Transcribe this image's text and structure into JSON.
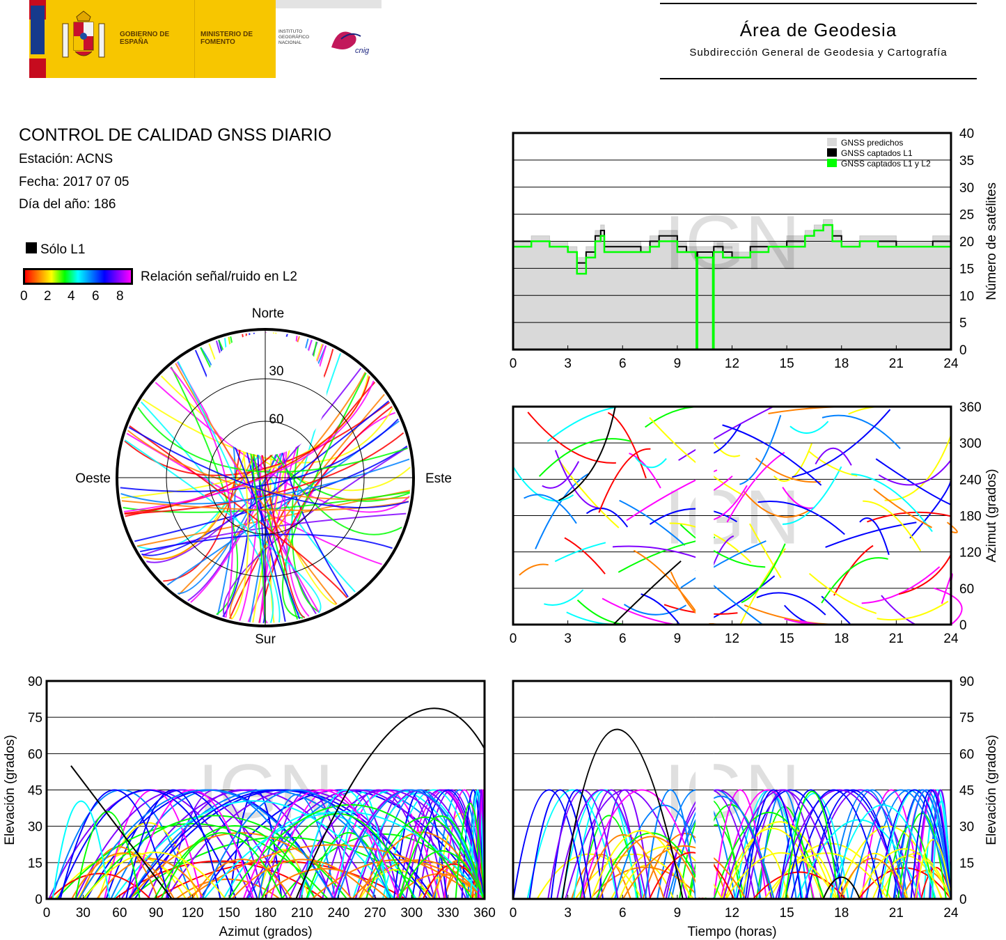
{
  "header": {
    "logos": {
      "gobierno": "GOBIERNO DE ESPAÑA",
      "ministerio": "MINISTERIO DE FOMENTO",
      "instituto": "INSTITUTO GEOGRÁFICO NACIONAL",
      "cnig": "cnig"
    },
    "title": "Área de Geodesia",
    "subtitle": "Subdirección General de Geodesia y Cartografía"
  },
  "report": {
    "title": "CONTROL DE CALIDAD GNSS DIARIO",
    "station": "Estación: ACNS",
    "date": "Fecha: 2017 07 05",
    "doy": "Día del año: 186"
  },
  "legend": {
    "l1_only": "Sólo L1",
    "snr_label": "Relación señal/ruido en L2",
    "snr_ticks": [
      "0",
      "2",
      "4",
      "6",
      "8"
    ]
  },
  "colors": {
    "predicted": "#d9d9d9",
    "l1": "#000000",
    "l1l2": "#00ff00",
    "snr_scale": [
      "#ff0000",
      "#ff8000",
      "#ffff00",
      "#00ff00",
      "#00ffff",
      "#0080ff",
      "#0000ff",
      "#8000ff",
      "#ff00ff"
    ]
  },
  "watermark": "IGN",
  "chart_data": [
    {
      "id": "satellite_count",
      "type": "area",
      "ylabel": "Número de satélites",
      "x_ticks": [
        "0",
        "3",
        "6",
        "9",
        "12",
        "15",
        "18",
        "21",
        "24"
      ],
      "y_ticks": [
        "0",
        "5",
        "10",
        "15",
        "20",
        "25",
        "30",
        "35",
        "40"
      ],
      "xlim": [
        0,
        24
      ],
      "ylim": [
        0,
        40
      ],
      "grid": true,
      "legend_position": "top-right",
      "series": [
        {
          "name": "GNSS predichos",
          "x": [
            0,
            1,
            2,
            3,
            3.5,
            4,
            4.5,
            4.8,
            5,
            6,
            7,
            7.5,
            8,
            9,
            9.5,
            10,
            10.8,
            11,
            11.5,
            12,
            13,
            14,
            15,
            16,
            16.5,
            17,
            17.5,
            18,
            19,
            20,
            21,
            22,
            23,
            24
          ],
          "values": [
            20,
            21,
            20,
            19,
            17,
            19,
            22,
            23,
            20,
            20,
            19,
            21,
            22,
            20,
            19,
            19,
            19,
            20,
            19,
            18,
            20,
            20,
            21,
            22,
            23,
            24,
            22,
            20,
            21,
            21,
            20,
            20,
            21,
            20
          ]
        },
        {
          "name": "GNSS captados L1",
          "x": [
            0,
            1,
            2,
            3,
            3.5,
            4,
            4.5,
            4.8,
            5,
            6,
            7,
            7.5,
            8,
            9,
            9.5,
            10,
            10.05,
            10.1,
            10.8,
            10.95,
            11,
            11.5,
            12,
            13,
            14,
            15,
            16,
            16.5,
            17,
            17.5,
            18,
            19,
            20,
            21,
            22,
            23,
            24
          ],
          "values": [
            20,
            20,
            19,
            18,
            16,
            18,
            21,
            22,
            19,
            19,
            18,
            20,
            21,
            19,
            18,
            18,
            0,
            18,
            18,
            0,
            19,
            18,
            17,
            19,
            19,
            20,
            21,
            22,
            23,
            21,
            19,
            20,
            20,
            19,
            19,
            20,
            19
          ]
        },
        {
          "name": "GNSS captados L1 y L2",
          "x": [
            0,
            1,
            2,
            3,
            3.5,
            4,
            4.5,
            4.8,
            5,
            6,
            7,
            7.5,
            8,
            9,
            9.5,
            10,
            10.05,
            10.1,
            10.8,
            10.95,
            11,
            11.5,
            12,
            13,
            14,
            15,
            16,
            16.5,
            17,
            17.5,
            18,
            19,
            20,
            21,
            22,
            23,
            24
          ],
          "values": [
            19,
            20,
            19,
            18,
            14,
            17,
            20,
            21,
            18,
            18,
            18,
            19,
            20,
            18,
            18,
            17,
            0,
            17,
            17,
            0,
            18,
            17,
            17,
            18,
            19,
            19,
            21,
            22,
            23,
            20,
            19,
            20,
            19,
            19,
            19,
            19,
            19
          ]
        }
      ]
    },
    {
      "id": "skyplot",
      "type": "scatter",
      "direction_labels": {
        "north": "Norte",
        "south": "Sur",
        "east": "Este",
        "west": "Oeste"
      },
      "elevation_ticks": [
        "30",
        "60"
      ]
    },
    {
      "id": "azimuth_vs_time",
      "type": "scatter",
      "ylabel": "Azimut (grados)",
      "x_ticks": [
        "0",
        "3",
        "6",
        "9",
        "12",
        "15",
        "18",
        "21",
        "24"
      ],
      "y_ticks": [
        "0",
        "60",
        "120",
        "180",
        "240",
        "300",
        "360"
      ],
      "xlim": [
        0,
        24
      ],
      "ylim": [
        0,
        360
      ],
      "grid": true,
      "gap": [
        10,
        11
      ]
    },
    {
      "id": "elevation_vs_azimuth",
      "type": "scatter",
      "xlabel": "Azimut (grados)",
      "ylabel": "Elevación (grados)",
      "x_ticks": [
        "0",
        "30",
        "60",
        "90",
        "120",
        "150",
        "180",
        "210",
        "240",
        "270",
        "300",
        "330",
        "360"
      ],
      "y_ticks": [
        "0",
        "15",
        "30",
        "45",
        "60",
        "75",
        "90"
      ],
      "xlim": [
        0,
        360
      ],
      "ylim": [
        0,
        90
      ],
      "grid": true
    },
    {
      "id": "elevation_vs_time",
      "type": "scatter",
      "xlabel": "Tiempo (horas)",
      "ylabel": "Elevación (grados)",
      "x_ticks": [
        "0",
        "3",
        "6",
        "9",
        "12",
        "15",
        "18",
        "21",
        "24"
      ],
      "y_ticks": [
        "0",
        "15",
        "30",
        "45",
        "60",
        "75",
        "90"
      ],
      "xlim": [
        0,
        24
      ],
      "ylim": [
        0,
        90
      ],
      "grid": true,
      "gap": [
        10,
        11
      ]
    }
  ]
}
